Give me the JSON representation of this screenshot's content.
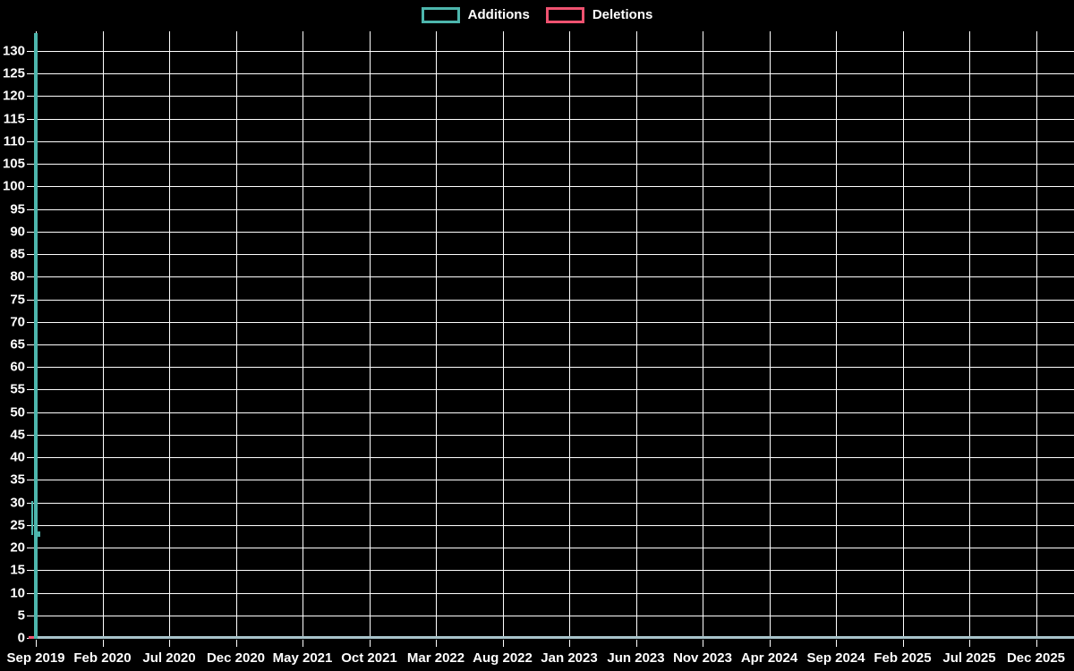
{
  "page": {
    "background_color": "#000000",
    "text_color": "#ffffff"
  },
  "legend": {
    "items": [
      {
        "label": "Additions",
        "color": "#4db6ad"
      },
      {
        "label": "Deletions",
        "color": "#ef5270"
      }
    ]
  },
  "chart_data": {
    "type": "line",
    "title": "",
    "xlabel": "",
    "ylabel": "",
    "x_tick_labels": [
      "Sep 2019",
      "Feb 2020",
      "Jul 2020",
      "Dec 2020",
      "May 2021",
      "Oct 2021",
      "Mar 2022",
      "Aug 2022",
      "Jan 2023",
      "Jun 2023",
      "Nov 2023",
      "Apr 2024",
      "Sep 2024",
      "Feb 2025",
      "Jul 2025",
      "Dec 2025"
    ],
    "y_ticks": {
      "min": 0,
      "max": 130,
      "step": 5
    },
    "ylim": [
      0,
      134
    ],
    "grid": true,
    "legend_position": "top-center",
    "background_color": "#000000",
    "grid_color": "#ffffff",
    "axis_text_color": "#ffffff",
    "zero_baseline_color": "#a8c3ca",
    "series": [
      {
        "name": "Additions",
        "color": "#4db6ad",
        "points": [
          {
            "x": "Sep 2019",
            "y": 134
          },
          {
            "x": "Sep 2019 (following week)",
            "y": 23
          },
          {
            "x": "remainder through Dec 2025",
            "y": 0
          }
        ]
      },
      {
        "name": "Deletions",
        "color": "#ef5270",
        "points": [
          {
            "x": "Sep 2019",
            "y": 1
          },
          {
            "x": "remainder through Dec 2025",
            "y": 0
          }
        ]
      }
    ]
  }
}
